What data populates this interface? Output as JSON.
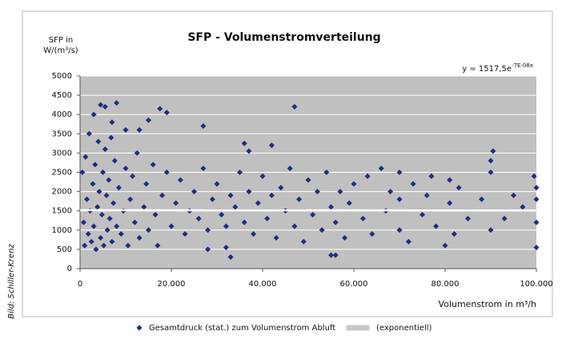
{
  "chart_data": {
    "type": "scatter",
    "title": "SFP - Volumenstromverteilung",
    "y_label": [
      "SFP in",
      "W/(m³/s)"
    ],
    "x_label": "Volumenstrom in m³/h",
    "equation": {
      "base": "y = 1517,5e",
      "exponent": "-7E-08x"
    },
    "credit": "Bild: Schiller-Krenz",
    "xlim": [
      0,
      100000
    ],
    "ylim": [
      0,
      5000
    ],
    "xticks": [
      0,
      {
        "value": 20000,
        "label": "20.000"
      },
      {
        "value": 40000,
        "label": "40.000"
      },
      {
        "value": 60000,
        "label": "60.000"
      },
      {
        "value": 80000,
        "label": "80.000"
      },
      {
        "value": 100000,
        "label": "100.000"
      }
    ],
    "yticks": [
      0,
      500,
      1000,
      1500,
      2000,
      2500,
      3000,
      3500,
      4000,
      4500,
      5000
    ],
    "grid": true,
    "series": [
      {
        "name": "Gesamtdruck (stat.) zum Volumenstrom Abluft",
        "color": "#1f2d80",
        "x": [
          4500,
          5500,
          8000,
          7000,
          3000,
          10000,
          15000,
          17500,
          19000,
          13000,
          27000,
          47000,
          36000,
          42000,
          37000,
          90500,
          33000,
          55000,
          56000,
          100000,
          32000,
          28000,
          500,
          800,
          1000,
          1200,
          1500,
          1800,
          2000,
          2200,
          2500,
          2800,
          3000,
          3300,
          3500,
          3800,
          4000,
          4200,
          4500,
          4800,
          5000,
          5200,
          5500,
          5800,
          6000,
          6300,
          6500,
          6800,
          7000,
          7300,
          7600,
          8000,
          8500,
          9000,
          9500,
          10000,
          10500,
          11000,
          11500,
          12000,
          12500,
          13000,
          14000,
          14500,
          15000,
          16000,
          16500,
          17000,
          18000,
          19000,
          20000,
          21000,
          22000,
          23000,
          24000,
          25000,
          26000,
          27000,
          28000,
          29000,
          30000,
          31000,
          32000,
          33000,
          34000,
          35000,
          36000,
          37000,
          38000,
          39000,
          40000,
          41000,
          42000,
          43000,
          44000,
          45000,
          46000,
          47000,
          48000,
          49000,
          50000,
          51000,
          52000,
          53000,
          54000,
          55000,
          56000,
          57000,
          58000,
          59000,
          60000,
          62000,
          63000,
          64000,
          66000,
          67000,
          68000,
          70000,
          70000,
          70000,
          72000,
          73000,
          75000,
          76000,
          77000,
          78000,
          80000,
          81000,
          81000,
          82000,
          83000,
          85000,
          88000,
          90000,
          90000,
          90000,
          93000,
          95000,
          97000,
          99500,
          100000,
          100000,
          100000
        ],
        "values": [
          4250,
          4200,
          4300,
          3800,
          4000,
          3600,
          3850,
          4150,
          4050,
          3600,
          3700,
          4200,
          3250,
          3200,
          3050,
          3050,
          300,
          350,
          350,
          550,
          550,
          500,
          2500,
          1200,
          600,
          2900,
          1800,
          900,
          3500,
          1500,
          700,
          2200,
          1100,
          2700,
          500,
          1600,
          3300,
          2000,
          800,
          1400,
          2500,
          600,
          3100,
          1900,
          1000,
          2300,
          1300,
          3400,
          700,
          1700,
          2800,
          1100,
          2100,
          900,
          1500,
          2600,
          600,
          1800,
          2400,
          1200,
          3000,
          800,
          1600,
          2200,
          1000,
          2700,
          1400,
          600,
          1900,
          2500,
          1100,
          1700,
          2300,
          900,
          1500,
          2000,
          1300,
          2600,
          1000,
          1800,
          2200,
          1400,
          1100,
          1900,
          1600,
          2500,
          1200,
          2000,
          900,
          1700,
          2400,
          1300,
          1900,
          800,
          2100,
          1500,
          2600,
          1100,
          1800,
          700,
          2300,
          1400,
          2000,
          1000,
          2500,
          1600,
          1200,
          2000,
          800,
          1700,
          2200,
          1300,
          2400,
          900,
          2600,
          1500,
          2000,
          1000,
          1800,
          2500,
          700,
          2200,
          1400,
          1900,
          2400,
          1100,
          600,
          1700,
          2300,
          900,
          2100,
          1300,
          1800,
          2500,
          1000,
          2800,
          1300,
          1900,
          1600,
          2400,
          2100,
          1200,
          1800
        ]
      },
      {
        "name": "(exponentiell)",
        "color": "#ffffff",
        "x": [
          0,
          100000
        ],
        "values": [
          1517.5,
          1510.4
        ]
      }
    ]
  }
}
